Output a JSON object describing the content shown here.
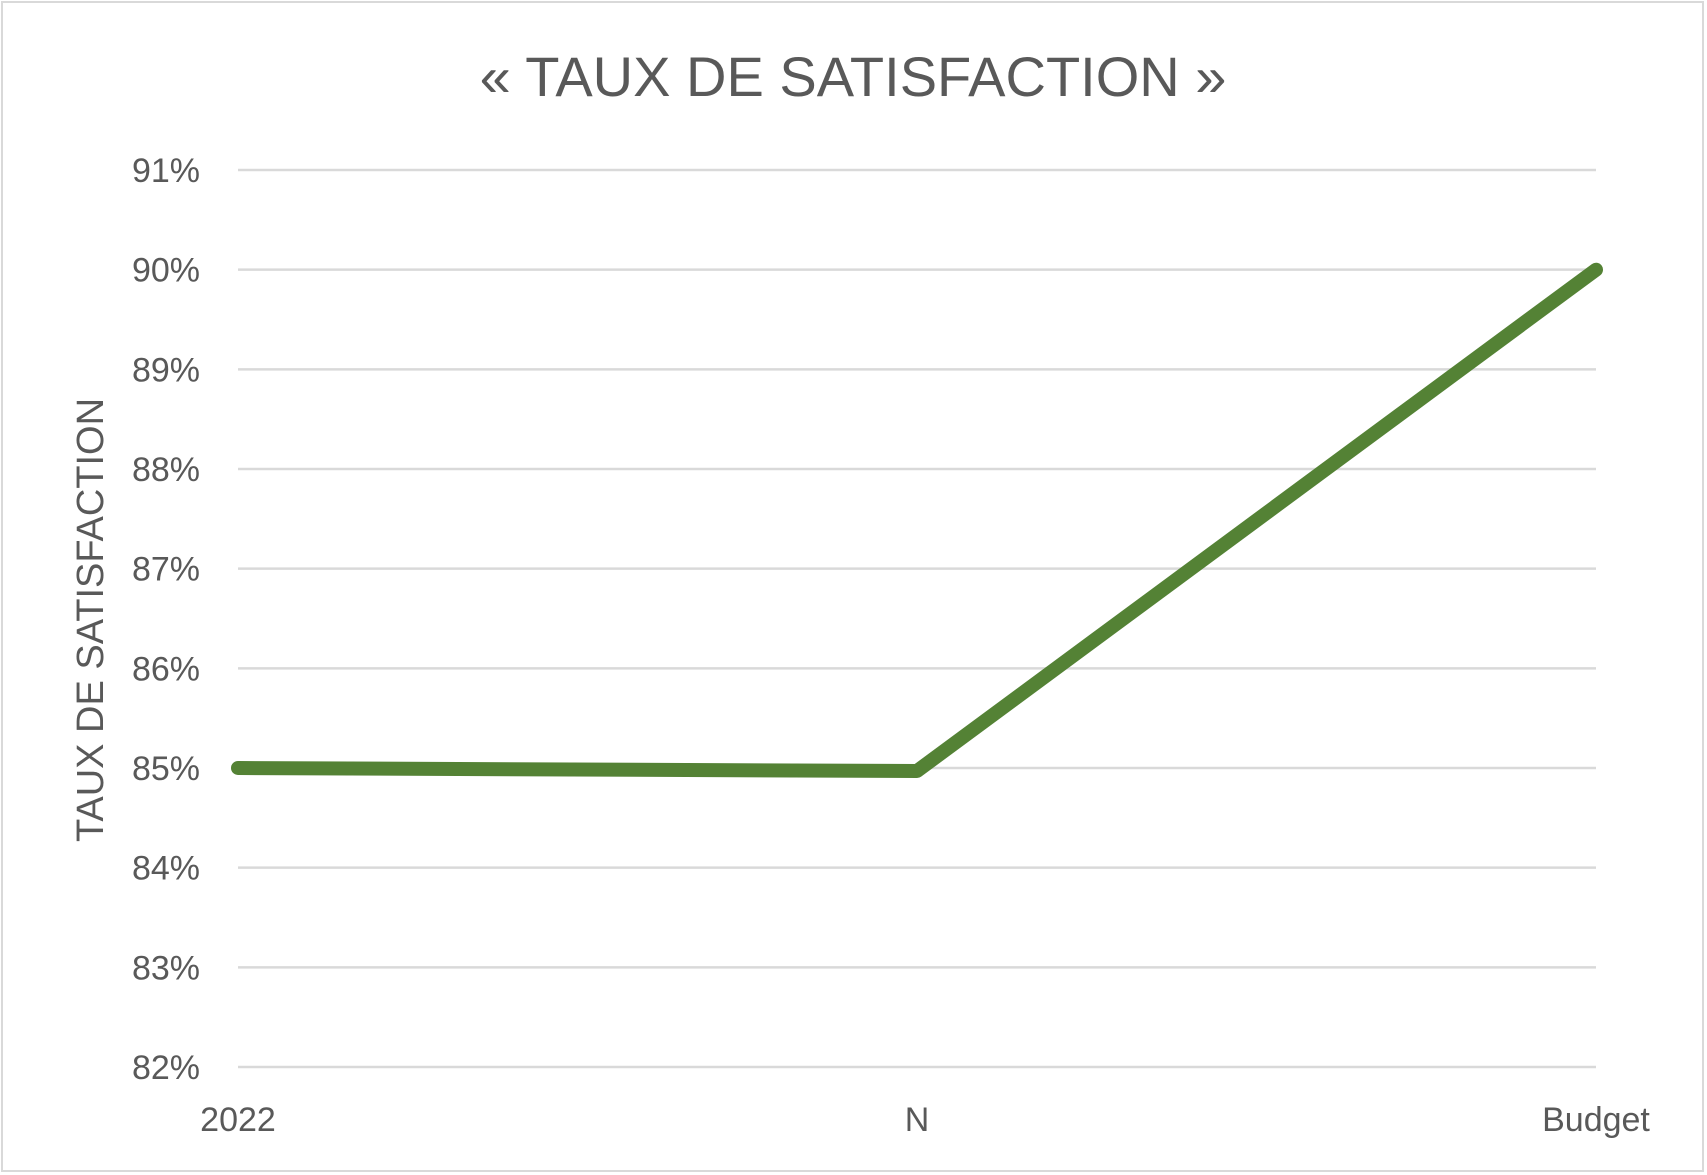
{
  "chart_data": {
    "type": "line",
    "title": "« TAUX DE SATISFACTION »",
    "xlabel": "",
    "ylabel": "TAUX DE SATISFACTION",
    "categories": [
      "2022",
      "N",
      "Budget"
    ],
    "series": [
      {
        "values": [
          85.0,
          84.97,
          90.0
        ],
        "color": "#548235"
      }
    ],
    "ylim": [
      82,
      91
    ],
    "ytick_step": 1,
    "ytick_suffix": "%",
    "grid": true,
    "gridline_color": "#d9d9d9",
    "text_color": "#595959",
    "legend": "none"
  }
}
